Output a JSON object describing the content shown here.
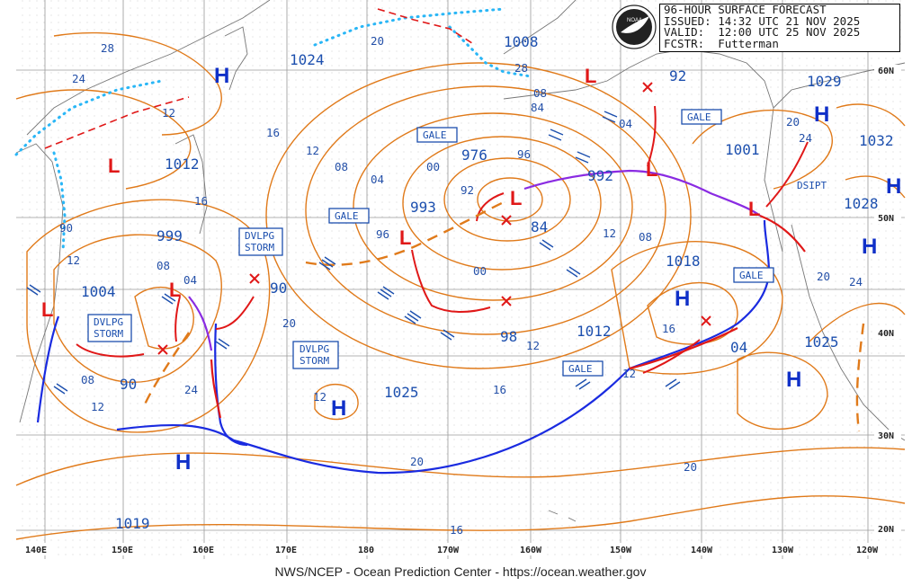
{
  "header": {
    "line1": "96-HOUR SURFACE FORECAST",
    "line2": "ISSUED: 14:32 UTC 21 NOV 2025",
    "line3": "VALID:  12:00 UTC 25 NOV 2025",
    "line4": "FCSTR:  Futterman"
  },
  "credit": "NWS/NCEP - Ocean Prediction Center - https://ocean.weather.gov",
  "logo_text": "NOAA",
  "longitudes": [
    "140E",
    "150E",
    "160E",
    "170E",
    "180",
    "170W",
    "160W",
    "150W",
    "140W",
    "130W",
    "120W"
  ],
  "latitudes": [
    "60N",
    "50N",
    "40N",
    "30N",
    "20N"
  ],
  "pressure_values": [
    "1024",
    "1008",
    "1029",
    "1032",
    "1028",
    "1012",
    "1001",
    "92",
    "976",
    "993",
    "992",
    "84",
    "999",
    "1004",
    "90",
    "1018",
    "1012",
    "98",
    "1025",
    "1025",
    "04",
    "1019",
    "90"
  ],
  "highs": [
    "H",
    "H",
    "H",
    "H",
    "H",
    "H",
    "H",
    "H"
  ],
  "lows": [
    "L",
    "L",
    "L",
    "L",
    "L",
    "L",
    "L",
    "L"
  ],
  "isobar_labels": [
    "28",
    "24",
    "20",
    "16",
    "12",
    "08",
    "04",
    "00",
    "96",
    "92",
    "16",
    "12",
    "08",
    "04",
    "00",
    "96",
    "84",
    "04",
    "08",
    "12",
    "16",
    "20",
    "24",
    "28",
    "20",
    "24",
    "20",
    "16",
    "12",
    "16",
    "20",
    "12",
    "08",
    "12",
    "24",
    "12",
    "12",
    "08",
    "90",
    "20"
  ],
  "warnings": [
    "GALE",
    "GALE",
    "GALE",
    "GALE",
    "GALE"
  ],
  "storm_boxes": [
    {
      "l1": "DVLPG",
      "l2": "STORM"
    },
    {
      "l1": "DVLPG",
      "l2": "STORM"
    },
    {
      "l1": "DVLPG",
      "l2": "STORM"
    }
  ],
  "dsipt": "DSIPT",
  "colors": {
    "isobar": "#e07a1a",
    "high": "#1030c8",
    "low": "#e01818",
    "cold_front": "#1a2be0",
    "warm_front": "#e01818",
    "occluded": "#8a2be2",
    "ice": "#29b6f6",
    "grid": "#9a9a9a"
  }
}
